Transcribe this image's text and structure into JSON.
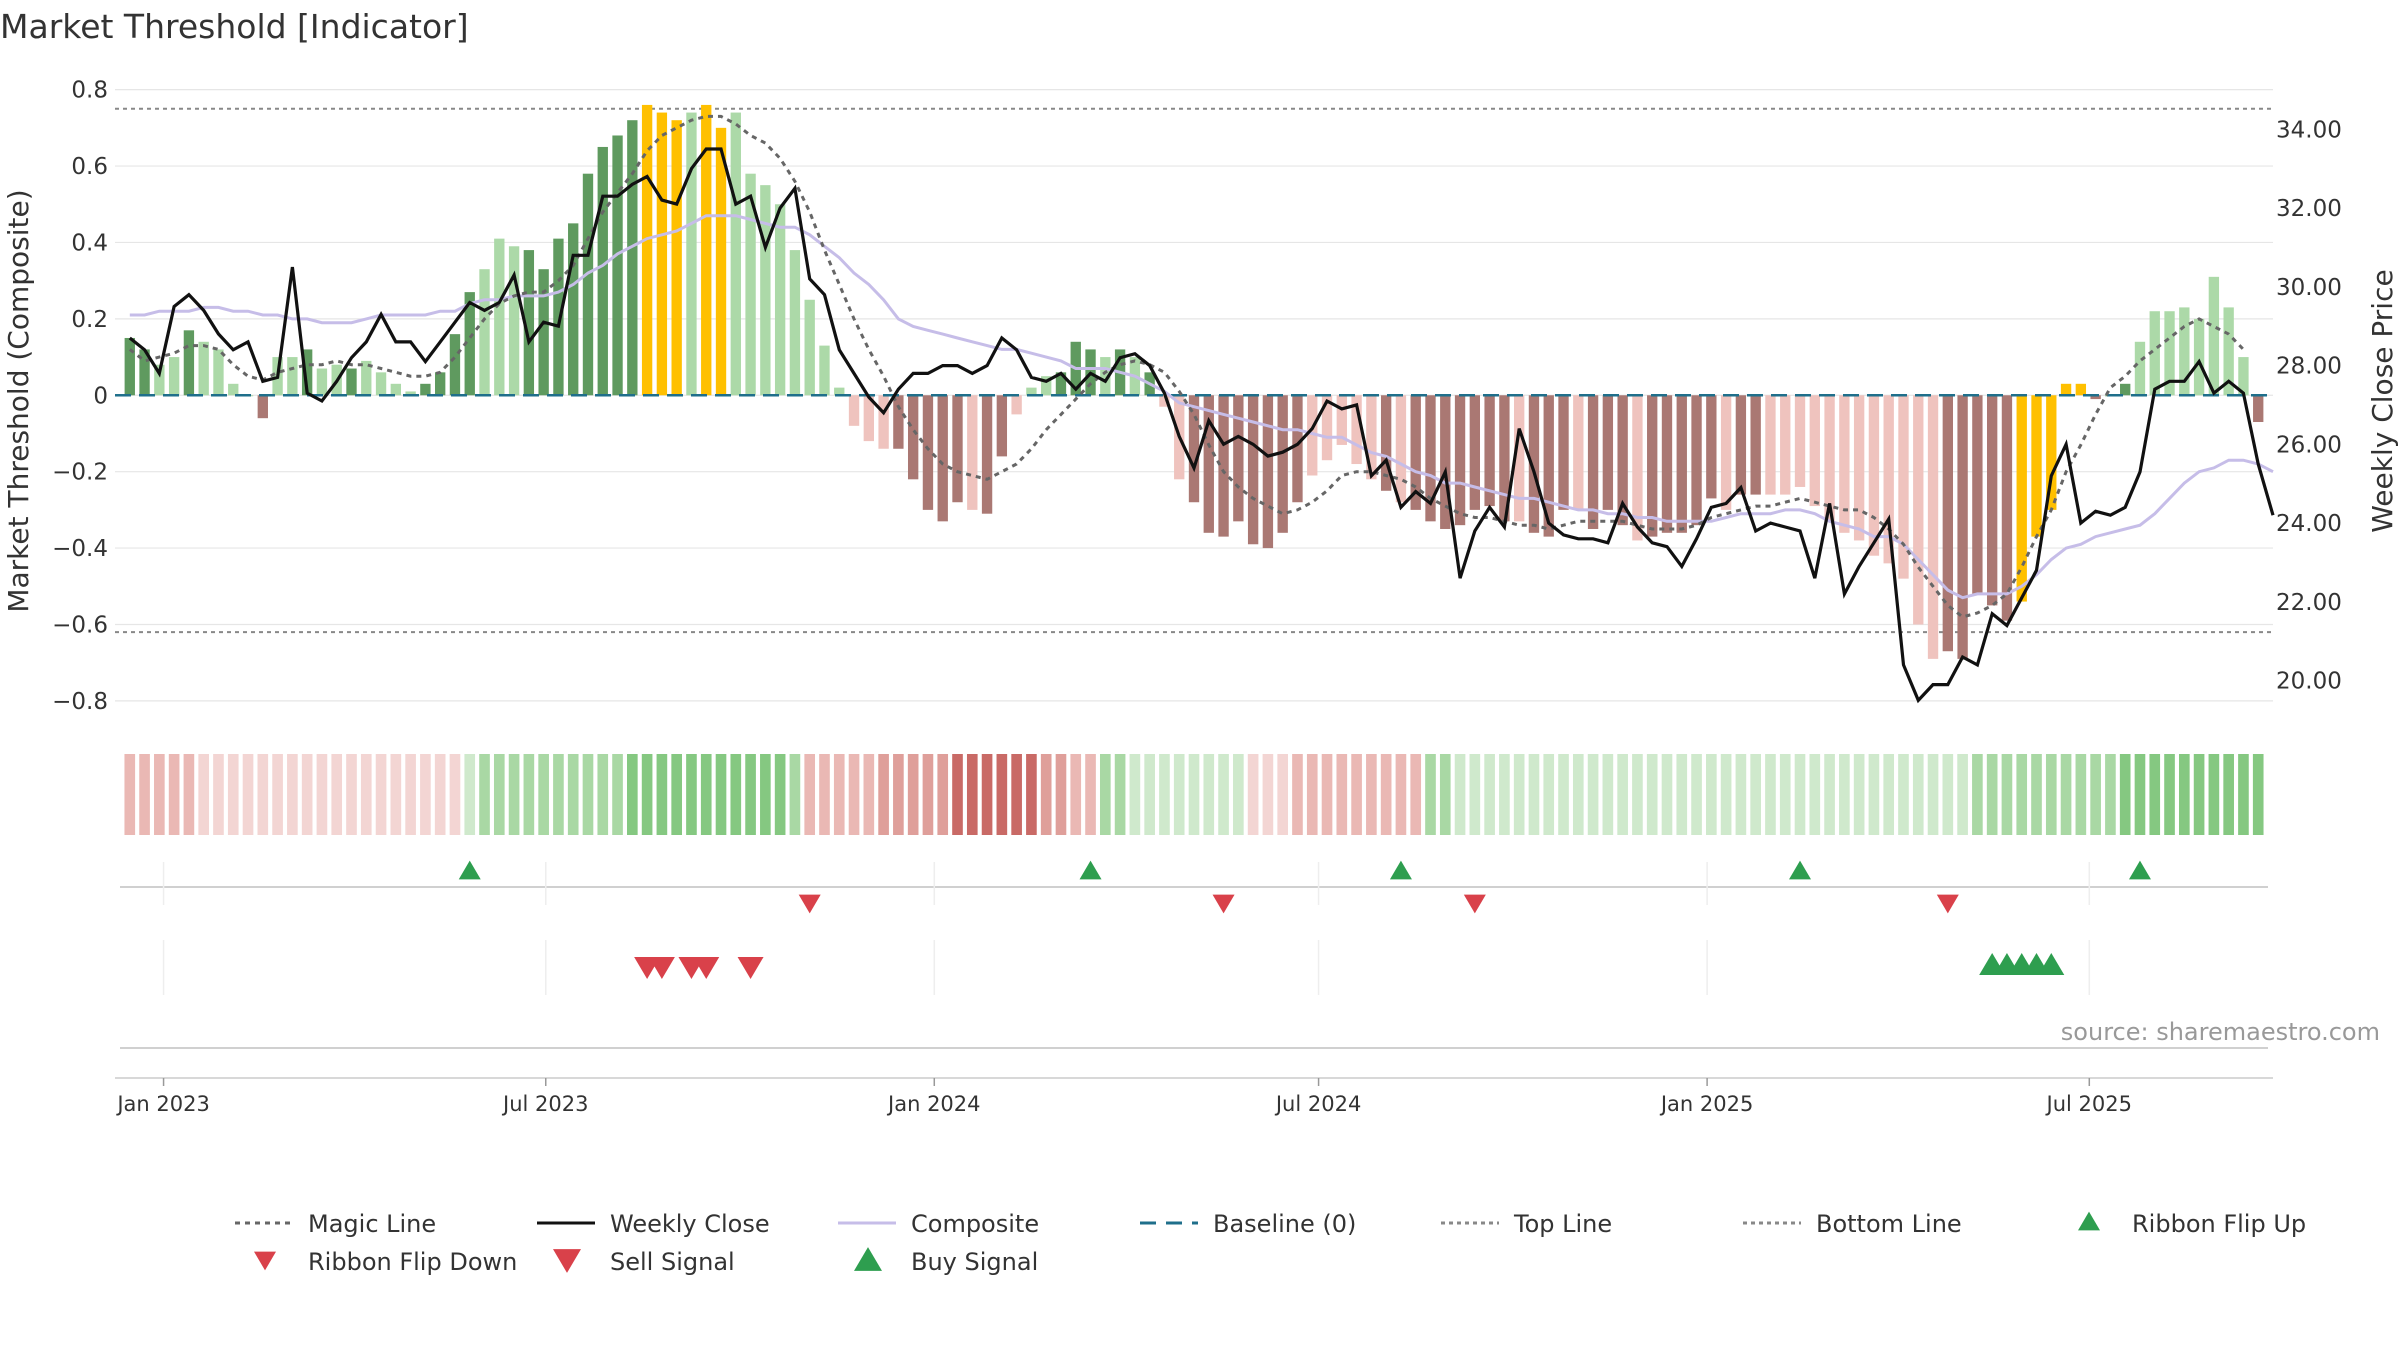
{
  "title": "Market Threshold [Indicator]",
  "source": "source: sharemaestro.com",
  "colors": {
    "bar_bull_strong": "#5f9a5f",
    "bar_bull_light": "#acd9a8",
    "bar_bear_strong": "#aa7873",
    "bar_bear_light": "#efc3be",
    "bar_extreme": "#ffc000",
    "weekly_close": "#111111",
    "composite": "#c6bde8",
    "magic_line": "#666666",
    "baseline": "#1f6f8b",
    "threshold_line": "#888888",
    "buy": "#2e9e4f",
    "sell": "#d9414a"
  },
  "chart_data": {
    "type": "bar+line",
    "title": "Market Threshold [Indicator]",
    "ylabel": "Market Threshold (Composite)",
    "y2label": "Weekly Close Price",
    "ylim": [
      -0.85,
      0.82
    ],
    "y2lim": [
      19.0,
      35.2
    ],
    "yticks": [
      0.8,
      0.6,
      0.4,
      0.2,
      0,
      -0.2,
      -0.4,
      -0.6,
      -0.8
    ],
    "ytick_labels": [
      "0.8",
      "0.6",
      "0.4",
      "0.2",
      "0",
      "−0.2",
      "−0.4",
      "−0.6",
      "−0.8"
    ],
    "y2ticks": [
      34,
      32,
      30,
      28,
      26,
      24,
      22,
      20
    ],
    "y2tick_labels": [
      "34.00",
      "32.00",
      "30.00",
      "28.00",
      "26.00",
      "24.00",
      "22.00",
      "20.00"
    ],
    "x_start": "2022-12-16",
    "x_step_days": 7,
    "xlim": [
      "2022-12-09",
      "2025-09-26"
    ],
    "xtick_dates": [
      "2023-01-01",
      "2023-07-01",
      "2024-01-01",
      "2024-07-01",
      "2025-01-01",
      "2025-07-01"
    ],
    "xtick_labels": [
      "Jan 2023",
      "Jul 2023",
      "Jan 2024",
      "Jul 2024",
      "Jan 2025",
      "Jul 2025"
    ],
    "top_line": 0.75,
    "bottom_line": -0.62,
    "baseline": 0,
    "composite_bars": [
      0.15,
      0.12,
      0.08,
      0.1,
      0.17,
      0.14,
      0.12,
      0.03,
      0,
      -0.06,
      0.1,
      0.1,
      0.12,
      0.07,
      0.08,
      0.07,
      0.09,
      0.06,
      0.03,
      0.01,
      0.03,
      0.06,
      0.16,
      0.27,
      0.33,
      0.41,
      0.39,
      0.38,
      0.33,
      0.41,
      0.45,
      0.58,
      0.65,
      0.68,
      0.72,
      0.76,
      0.74,
      0.72,
      0.74,
      0.76,
      0.7,
      0.74,
      0.58,
      0.55,
      0.5,
      0.38,
      0.25,
      0.13,
      0.02,
      -0.08,
      -0.12,
      -0.14,
      -0.14,
      -0.22,
      -0.3,
      -0.33,
      -0.28,
      -0.3,
      -0.31,
      -0.16,
      -0.05,
      0.02,
      0.05,
      0.06,
      0.14,
      0.12,
      0.1,
      0.12,
      0.1,
      0.06,
      -0.03,
      -0.22,
      -0.28,
      -0.36,
      -0.37,
      -0.33,
      -0.39,
      -0.4,
      -0.36,
      -0.28,
      -0.21,
      -0.17,
      -0.13,
      -0.18,
      -0.22,
      -0.25,
      -0.28,
      -0.3,
      -0.33,
      -0.35,
      -0.34,
      -0.3,
      -0.29,
      -0.33,
      -0.33,
      -0.36,
      -0.37,
      -0.3,
      -0.3,
      -0.35,
      -0.3,
      -0.34,
      -0.38,
      -0.37,
      -0.36,
      -0.36,
      -0.34,
      -0.27,
      -0.3,
      -0.26,
      -0.26,
      -0.26,
      -0.26,
      -0.24,
      -0.29,
      -0.33,
      -0.36,
      -0.38,
      -0.42,
      -0.44,
      -0.48,
      -0.6,
      -0.69,
      -0.67,
      -0.69,
      -0.52,
      -0.55,
      -0.59,
      -0.54,
      -0.37,
      -0.3,
      0.03,
      0.03,
      -0.01,
      0,
      0.03,
      0.14,
      0.22,
      0.22,
      0.23,
      0.2,
      0.31,
      0.23,
      0.1,
      -0.07
    ],
    "bar_tone": "SSLLSLLLLSLLSLLSLLLLSSSSLLLSSSSSSSSXXXLXXLLLLLLLLLLLSSSSSLSSLLLSSSLSLSLLSSSSSSSSLLLLLSLSSSSSSSLSSSLSSSLSSSSSLSSLLLLLLLLLLLLSSSSSXXXXXSSSLLLLLLLLSSSSSSSLLLLLLL",
    "weekly_close": [
      28.7,
      28.4,
      27.8,
      29.5,
      29.8,
      29.4,
      28.8,
      28.4,
      28.6,
      27.6,
      27.7,
      30.5,
      27.3,
      27.1,
      27.6,
      28.2,
      28.6,
      29.3,
      28.6,
      28.6,
      28.1,
      28.6,
      29.1,
      29.6,
      29.4,
      29.6,
      30.3,
      28.6,
      29.1,
      29.0,
      30.8,
      30.8,
      32.3,
      32.3,
      32.6,
      32.8,
      32.2,
      32.1,
      33.0,
      33.5,
      33.5,
      32.1,
      32.3,
      31.0,
      32.0,
      32.5,
      30.2,
      29.8,
      28.4,
      27.8,
      27.2,
      26.8,
      27.4,
      27.8,
      27.8,
      28.0,
      28.0,
      27.8,
      28.0,
      28.7,
      28.4,
      27.7,
      27.6,
      27.8,
      27.4,
      27.8,
      27.6,
      28.2,
      28.3,
      28.0,
      27.3,
      26.2,
      25.4,
      26.6,
      26.0,
      26.2,
      26.0,
      25.7,
      25.8,
      26.0,
      26.4,
      27.1,
      26.9,
      27.0,
      25.2,
      25.6,
      24.4,
      24.8,
      24.5,
      25.3,
      22.6,
      23.8,
      24.4,
      23.9,
      26.4,
      25.3,
      24.0,
      23.7,
      23.6,
      23.6,
      23.5,
      24.5,
      23.9,
      23.5,
      23.4,
      22.9,
      23.6,
      24.4,
      24.5,
      24.9,
      23.8,
      24.0,
      23.9,
      23.8,
      22.6,
      24.5,
      22.2,
      22.9,
      23.5,
      24.1,
      20.4,
      19.5,
      19.9,
      19.9,
      20.6,
      20.4,
      21.7,
      21.4,
      22.1,
      22.8,
      25.2,
      26.0,
      24.0,
      24.3,
      24.2,
      24.4,
      25.3,
      27.4,
      27.6,
      27.6,
      28.1,
      27.3,
      27.6,
      27.3,
      25.5,
      24.2
    ],
    "composite_line": [
      0.21,
      0.21,
      0.22,
      0.22,
      0.22,
      0.23,
      0.23,
      0.22,
      0.22,
      0.21,
      0.21,
      0.2,
      0.2,
      0.19,
      0.19,
      0.19,
      0.2,
      0.21,
      0.21,
      0.21,
      0.21,
      0.22,
      0.22,
      0.24,
      0.25,
      0.25,
      0.26,
      0.26,
      0.26,
      0.27,
      0.29,
      0.32,
      0.34,
      0.37,
      0.39,
      0.41,
      0.42,
      0.43,
      0.45,
      0.47,
      0.47,
      0.47,
      0.46,
      0.45,
      0.44,
      0.44,
      0.42,
      0.39,
      0.36,
      0.32,
      0.29,
      0.25,
      0.2,
      0.18,
      0.17,
      0.16,
      0.15,
      0.14,
      0.13,
      0.12,
      0.12,
      0.11,
      0.1,
      0.09,
      0.07,
      0.07,
      0.07,
      0.06,
      0.05,
      0.03,
      0.01,
      -0.02,
      -0.03,
      -0.04,
      -0.05,
      -0.06,
      -0.07,
      -0.08,
      -0.09,
      -0.09,
      -0.1,
      -0.11,
      -0.11,
      -0.13,
      -0.15,
      -0.16,
      -0.18,
      -0.2,
      -0.21,
      -0.23,
      -0.23,
      -0.24,
      -0.25,
      -0.26,
      -0.27,
      -0.27,
      -0.28,
      -0.29,
      -0.3,
      -0.3,
      -0.31,
      -0.31,
      -0.32,
      -0.32,
      -0.33,
      -0.33,
      -0.33,
      -0.33,
      -0.32,
      -0.31,
      -0.31,
      -0.31,
      -0.3,
      -0.3,
      -0.31,
      -0.33,
      -0.34,
      -0.35,
      -0.37,
      -0.37,
      -0.39,
      -0.43,
      -0.47,
      -0.51,
      -0.53,
      -0.52,
      -0.52,
      -0.52,
      -0.5,
      -0.47,
      -0.43,
      -0.4,
      -0.39,
      -0.37,
      -0.36,
      -0.35,
      -0.34,
      -0.31,
      -0.27,
      -0.23,
      -0.2,
      -0.19,
      -0.17,
      -0.17,
      -0.18,
      -0.2
    ],
    "magic_line": [
      0.12,
      0.09,
      0.1,
      0.11,
      0.13,
      0.13,
      0.12,
      0.08,
      0.05,
      0.04,
      0.06,
      0.07,
      0.08,
      0.08,
      0.09,
      0.08,
      0.08,
      0.07,
      0.06,
      0.05,
      0.05,
      0.06,
      0.1,
      0.15,
      0.2,
      0.24,
      0.26,
      0.27,
      0.27,
      0.3,
      0.34,
      0.41,
      0.48,
      0.53,
      0.58,
      0.64,
      0.68,
      0.7,
      0.72,
      0.73,
      0.73,
      0.71,
      0.68,
      0.66,
      0.62,
      0.56,
      0.48,
      0.38,
      0.29,
      0.2,
      0.12,
      0.05,
      -0.03,
      -0.09,
      -0.14,
      -0.18,
      -0.2,
      -0.21,
      -0.22,
      -0.2,
      -0.18,
      -0.14,
      -0.09,
      -0.05,
      -0.01,
      0.03,
      0.06,
      0.08,
      0.09,
      0.08,
      0.06,
      0.01,
      -0.05,
      -0.13,
      -0.2,
      -0.24,
      -0.27,
      -0.29,
      -0.31,
      -0.3,
      -0.28,
      -0.25,
      -0.21,
      -0.2,
      -0.2,
      -0.21,
      -0.22,
      -0.24,
      -0.27,
      -0.29,
      -0.31,
      -0.32,
      -0.32,
      -0.33,
      -0.34,
      -0.34,
      -0.35,
      -0.34,
      -0.33,
      -0.33,
      -0.33,
      -0.33,
      -0.34,
      -0.35,
      -0.35,
      -0.35,
      -0.34,
      -0.32,
      -0.31,
      -0.3,
      -0.29,
      -0.29,
      -0.28,
      -0.27,
      -0.28,
      -0.29,
      -0.3,
      -0.3,
      -0.32,
      -0.35,
      -0.39,
      -0.45,
      -0.5,
      -0.55,
      -0.58,
      -0.57,
      -0.55,
      -0.52,
      -0.45,
      -0.37,
      -0.3,
      -0.2,
      -0.13,
      -0.05,
      0.02,
      0.05,
      0.09,
      0.12,
      0.15,
      0.18,
      0.2,
      0.18,
      0.16,
      0.12
    ],
    "ribbon_tone": "SSSSLLLLLLLLLLLLLLLLLLLGGGGGGGGGGGGGGGGGGGGGGGRRRRRRRRRRRRRRRRRRRRGGGGGGGGGGRRRRRRRRRRRRGGGGGGGGGGGGGGGGGGGGGGGGGGGGGGGGGGGGGGGGGGGGGGGGGGGGGGGGGGGGGGGGGGGGGGG",
    "ribbon_strength": [
      2,
      2,
      2,
      2,
      2,
      1,
      1,
      1,
      1,
      1,
      1,
      1,
      1,
      1,
      1,
      1,
      1,
      1,
      1,
      1,
      1,
      1,
      1,
      1,
      2,
      2,
      2,
      2,
      2,
      2,
      2,
      2,
      2,
      2,
      3,
      3,
      3,
      3,
      3,
      3,
      3,
      3,
      3,
      3,
      3,
      2,
      2,
      2,
      2,
      2,
      2,
      3,
      3,
      3,
      3,
      3,
      4,
      4,
      4,
      4,
      4,
      4,
      3,
      3,
      2,
      2,
      2,
      2,
      1,
      1,
      1,
      1,
      1,
      1,
      1,
      1,
      1,
      1,
      1,
      2,
      2,
      2,
      2,
      2,
      2,
      2,
      2,
      2,
      2,
      2,
      1,
      1,
      1,
      1,
      1,
      1,
      1,
      1,
      1,
      1,
      1,
      1,
      1,
      1,
      1,
      1,
      1,
      1,
      1,
      1,
      1,
      1,
      1,
      1,
      1,
      1,
      1,
      1,
      1,
      1,
      1,
      1,
      1,
      1,
      1,
      2,
      2,
      2,
      2,
      2,
      2,
      2,
      2,
      2,
      2,
      3,
      3,
      3,
      3,
      3,
      3,
      3,
      3,
      3,
      3,
      2
    ],
    "ribbon_flip_up_idx": [
      23,
      65,
      86,
      113,
      136
    ],
    "ribbon_flip_down_idx": [
      46,
      74,
      91,
      123
    ],
    "sell_signal_idx": [
      35,
      36,
      38,
      39,
      42
    ],
    "buy_signal_idx": [
      126,
      127,
      128,
      129,
      130
    ],
    "legend": [
      "Magic Line",
      "Weekly Close",
      "Composite",
      "Baseline (0)",
      "Top Line",
      "Bottom Line",
      "Ribbon Flip Up",
      "Ribbon Flip Down",
      "Sell Signal",
      "Buy Signal"
    ]
  }
}
